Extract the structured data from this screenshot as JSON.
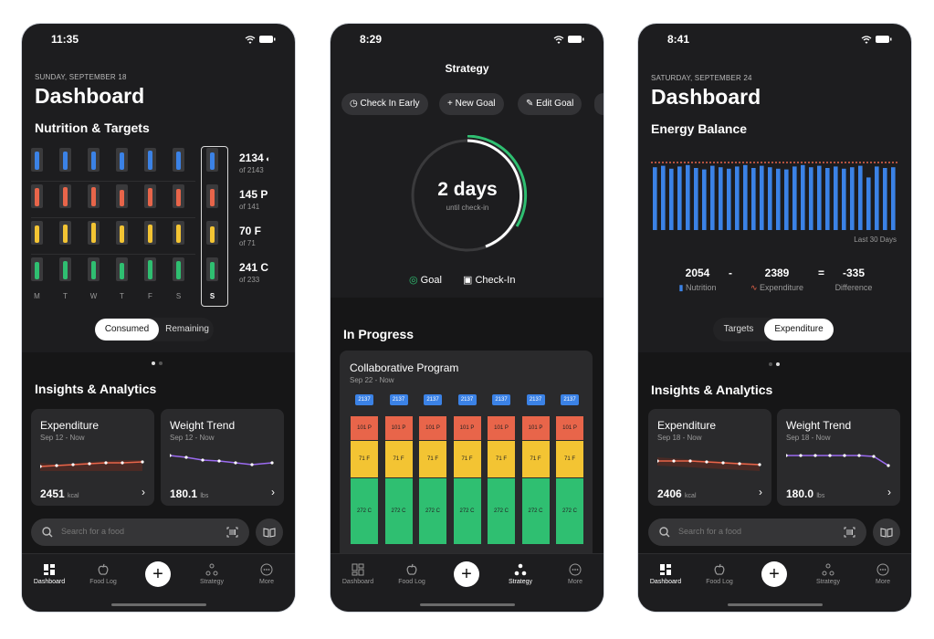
{
  "phone1": {
    "status_time": "11:35",
    "date": "SUNDAY, SEPTEMBER 18",
    "title": "Dashboard",
    "section": "Nutrition & Targets",
    "days": [
      "M",
      "T",
      "W",
      "T",
      "F",
      "S",
      "S"
    ],
    "targets": [
      {
        "value": "2134",
        "unit_icon": "flame-icon",
        "sub": "of 2143",
        "color": "#3b82e6"
      },
      {
        "value": "145 P",
        "sub": "of 141",
        "color": "#e8654a"
      },
      {
        "value": "70 F",
        "sub": "of 71",
        "color": "#f3c433"
      },
      {
        "value": "241 C",
        "sub": "of 233",
        "color": "#2fbf71"
      }
    ],
    "toggle": [
      "Consumed",
      "Remaining"
    ],
    "insights": "Insights & Analytics",
    "cards": [
      {
        "title": "Expenditure",
        "range": "Sep 12 - Now",
        "value": "2451",
        "unit": "kcal"
      },
      {
        "title": "Weight Trend",
        "range": "Sep 12 - Now",
        "value": "180.1",
        "unit": "lbs"
      }
    ],
    "search_placeholder": "Search for a food",
    "tabs": [
      "Dashboard",
      "Food Log",
      "Strategy",
      "More"
    ]
  },
  "phone2": {
    "status_time": "8:29",
    "title": "Strategy",
    "chips": [
      "Check In Early",
      "New Goal",
      "Edit Goal"
    ],
    "ring_value": "2 days",
    "ring_sub": "until check-in",
    "legend": [
      "Goal",
      "Check-In"
    ],
    "in_progress": "In Progress",
    "program": "Collaborative Program",
    "program_range": "Sep 22 - Now",
    "columns": {
      "kcal": "2137",
      "protein": "101 P",
      "fat": "71 F",
      "carbs": "272 C",
      "count": 7
    },
    "tabs": [
      "Dashboard",
      "Food Log",
      "Strategy",
      "More"
    ]
  },
  "phone3": {
    "status_time": "8:41",
    "date": "SATURDAY, SEPTEMBER 24",
    "title": "Dashboard",
    "section": "Energy Balance",
    "chart_note": "Last 30 Days",
    "chart_data": {
      "type": "bar",
      "values": [
        0.86,
        0.88,
        0.84,
        0.87,
        0.89,
        0.85,
        0.83,
        0.88,
        0.86,
        0.84,
        0.87,
        0.89,
        0.85,
        0.88,
        0.86,
        0.84,
        0.83,
        0.87,
        0.89,
        0.86,
        0.88,
        0.85,
        0.87,
        0.84,
        0.86,
        0.88,
        0.72,
        0.87,
        0.85,
        0.86
      ],
      "target_line": true
    },
    "balance": [
      {
        "value": "2054",
        "label": "Nutrition"
      },
      {
        "op": "-"
      },
      {
        "value": "2389",
        "label": "Expenditure"
      },
      {
        "op": "="
      },
      {
        "value": "-335",
        "label": "Difference"
      }
    ],
    "toggle": [
      "Targets",
      "Expenditure"
    ],
    "insights": "Insights & Analytics",
    "cards": [
      {
        "title": "Expenditure",
        "range": "Sep 18 - Now",
        "value": "2406",
        "unit": "kcal"
      },
      {
        "title": "Weight Trend",
        "range": "Sep 18 - Now",
        "value": "180.0",
        "unit": "lbs"
      }
    ],
    "search_placeholder": "Search for a food",
    "tabs": [
      "Dashboard",
      "Food Log",
      "Strategy",
      "More"
    ]
  }
}
